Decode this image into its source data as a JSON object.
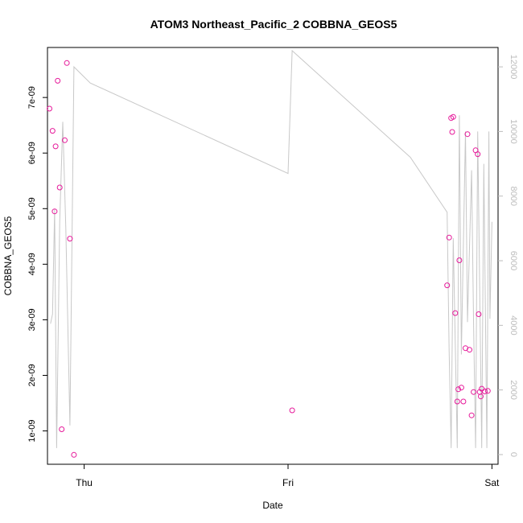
{
  "chart_data": {
    "type": "scatter",
    "title": "ATOM3 Northeast_Pacific_2 COBBNA_GEOS5",
    "xlabel": "Date",
    "ylabel": "COBBNA_GEOS5",
    "xlim": [
      -0.18,
      2.03
    ],
    "ylim": [
      4e-10,
      7.9e-09
    ],
    "x_ticks": [
      {
        "value": 0,
        "label": "Thu"
      },
      {
        "value": 1,
        "label": "Fri"
      },
      {
        "value": 2,
        "label": "Sat"
      }
    ],
    "y_ticks": [
      {
        "value": 1e-09,
        "label": "1e-09"
      },
      {
        "value": 2e-09,
        "label": "2e-09"
      },
      {
        "value": 3e-09,
        "label": "3e-09"
      },
      {
        "value": 4e-09,
        "label": "4e-09"
      },
      {
        "value": 5e-09,
        "label": "5e-09"
      },
      {
        "value": 6e-09,
        "label": "6e-09"
      },
      {
        "value": 7e-09,
        "label": "7e-09"
      }
    ],
    "y2lim": [
      -300,
      12600
    ],
    "y2_ticks": [
      0,
      2000,
      4000,
      6000,
      8000,
      10000,
      12000
    ],
    "grid": false,
    "series": [
      {
        "type": "scatter",
        "color": "#e6199a",
        "x": [
          -0.17,
          -0.155,
          -0.145,
          -0.14,
          -0.13,
          -0.12,
          -0.11,
          -0.095,
          -0.085,
          -0.07,
          -0.05,
          1.02,
          1.78,
          1.79,
          1.8,
          1.805,
          1.81,
          1.82,
          1.83,
          1.835,
          1.84,
          1.85,
          1.86,
          1.87,
          1.88,
          1.89,
          1.9,
          1.91,
          1.92,
          1.93,
          1.935,
          1.94,
          1.945,
          1.95,
          1.965,
          1.98
        ],
        "y": [
          6.8e-09,
          6.4e-09,
          4.95e-09,
          6.12e-09,
          7.3e-09,
          5.38e-09,
          1.03e-09,
          6.23e-09,
          7.62e-09,
          4.46e-09,
          5.7e-10,
          1.37e-09,
          3.62e-09,
          4.48e-09,
          6.63e-09,
          6.38e-09,
          6.65e-09,
          3.12e-09,
          1.53e-09,
          1.75e-09,
          4.07e-09,
          1.78e-09,
          1.53e-09,
          2.49e-09,
          6.34e-09,
          2.46e-09,
          1.28e-09,
          1.7e-09,
          6.05e-09,
          5.98e-09,
          3.1e-09,
          1.7e-09,
          1.62e-09,
          1.76e-09,
          1.71e-09,
          1.72e-09
        ]
      },
      {
        "type": "line",
        "axis": "right",
        "color": "#c8c8c8",
        "x": [
          -0.165,
          -0.155,
          -0.145,
          -0.135,
          -0.12,
          -0.105,
          -0.09,
          -0.07,
          -0.05,
          0.03,
          1.0,
          1.02,
          1.6,
          1.78,
          1.79,
          1.8,
          1.81,
          1.83,
          1.84,
          1.85,
          1.87,
          1.88,
          1.9,
          1.91,
          1.92,
          1.93,
          1.95,
          1.96,
          1.975,
          1.985,
          1.99,
          2.0
        ],
        "y": [
          4050,
          4350,
          7600,
          200,
          7200,
          10300,
          7000,
          900,
          12000,
          11500,
          8700,
          12500,
          9200,
          7500,
          3200,
          200,
          6700,
          200,
          10500,
          3100,
          10000,
          4100,
          8800,
          4000,
          200,
          10000,
          200,
          9000,
          200,
          10000,
          4200,
          7200
        ]
      }
    ]
  }
}
